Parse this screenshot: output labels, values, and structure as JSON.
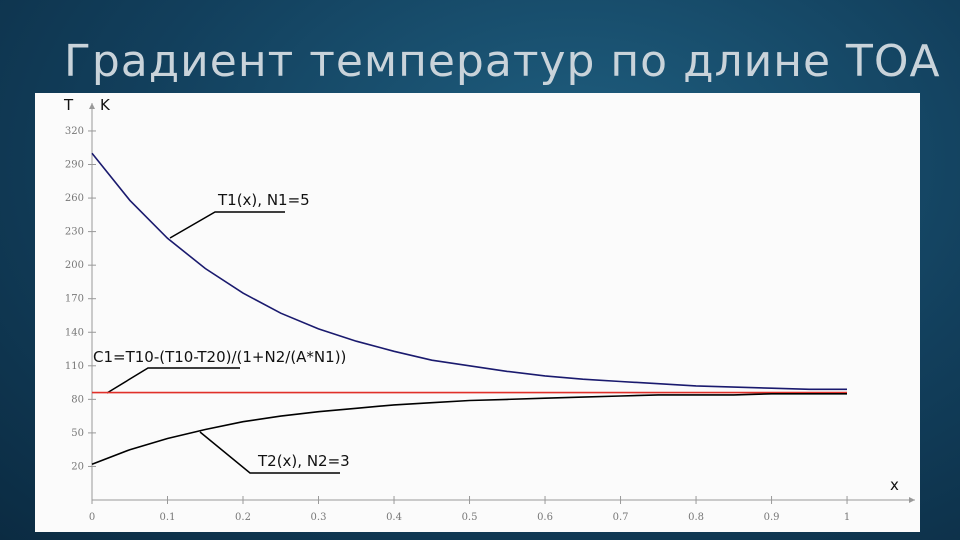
{
  "title": "Градиент температур по длине ТОА",
  "chart_data": {
    "type": "line",
    "y_label": "T",
    "y_unit": "K",
    "x_label": "x",
    "xlim": [
      0,
      1.09
    ],
    "ylim": [
      -10,
      345
    ],
    "xticks": [
      0,
      0.1,
      0.2,
      0.3,
      0.4,
      0.5,
      0.6,
      0.7,
      0.8,
      0.9,
      1
    ],
    "yticks": [
      20,
      50,
      80,
      110,
      140,
      170,
      200,
      230,
      260,
      290,
      320
    ],
    "x": [
      0,
      0.05,
      0.1,
      0.15,
      0.2,
      0.25,
      0.3,
      0.35,
      0.4,
      0.45,
      0.5,
      0.55,
      0.6,
      0.65,
      0.7,
      0.75,
      0.8,
      0.85,
      0.9,
      0.95,
      1
    ],
    "series": [
      {
        "name": "T1(x), N1=5",
        "color": "#1a1a6e",
        "values": [
          300,
          258,
          224,
          197,
          175,
          157,
          143,
          132,
          123,
          115,
          110,
          105,
          101,
          98,
          96,
          94,
          92,
          91,
          90,
          89,
          89
        ]
      },
      {
        "name": "C1=T10-(T10-T20)/(1+N2/(A*N1))",
        "color": "#e0302a",
        "x": [
          0,
          1
        ],
        "values": [
          86,
          86
        ]
      },
      {
        "name": "T2(x), N2=3",
        "color": "#000000",
        "values": [
          22,
          35,
          45,
          53,
          60,
          65,
          69,
          72,
          75,
          77,
          79,
          80,
          81,
          82,
          83,
          84,
          84,
          84,
          85,
          85,
          85
        ]
      }
    ]
  }
}
